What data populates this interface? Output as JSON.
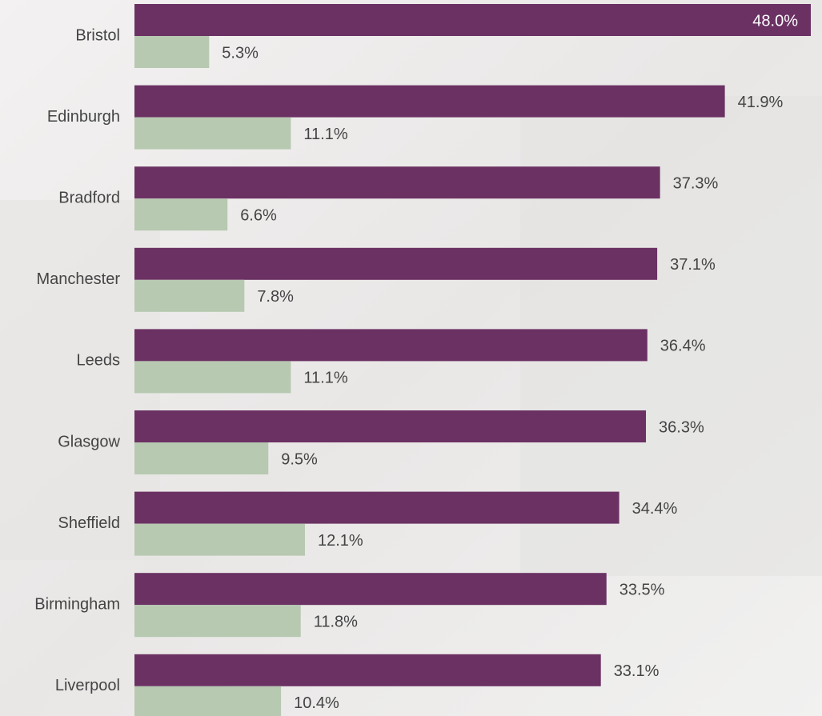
{
  "chart_data": {
    "type": "bar",
    "orientation": "horizontal",
    "categories": [
      "Bristol",
      "Edinburgh",
      "Bradford",
      "Manchester",
      "Leeds",
      "Glasgow",
      "Sheffield",
      "Birmingham",
      "Liverpool"
    ],
    "series": [
      {
        "color": "#6b3163",
        "values": [
          48.0,
          41.9,
          37.3,
          37.1,
          36.4,
          36.3,
          34.4,
          33.5,
          33.1
        ],
        "value_labels": [
          "48.0%",
          "41.9%",
          "37.3%",
          "37.1%",
          "36.4%",
          "36.3%",
          "34.4%",
          "33.5%",
          "33.1%"
        ]
      },
      {
        "color": "#b7c9b1",
        "values": [
          5.3,
          11.1,
          6.6,
          7.8,
          11.1,
          9.5,
          12.1,
          11.8,
          10.4
        ],
        "value_labels": [
          "5.3%",
          "11.1%",
          "6.6%",
          "7.8%",
          "11.1%",
          "9.5%",
          "12.1%",
          "11.8%",
          "10.4%"
        ]
      }
    ],
    "xlim": [
      0,
      48
    ]
  }
}
